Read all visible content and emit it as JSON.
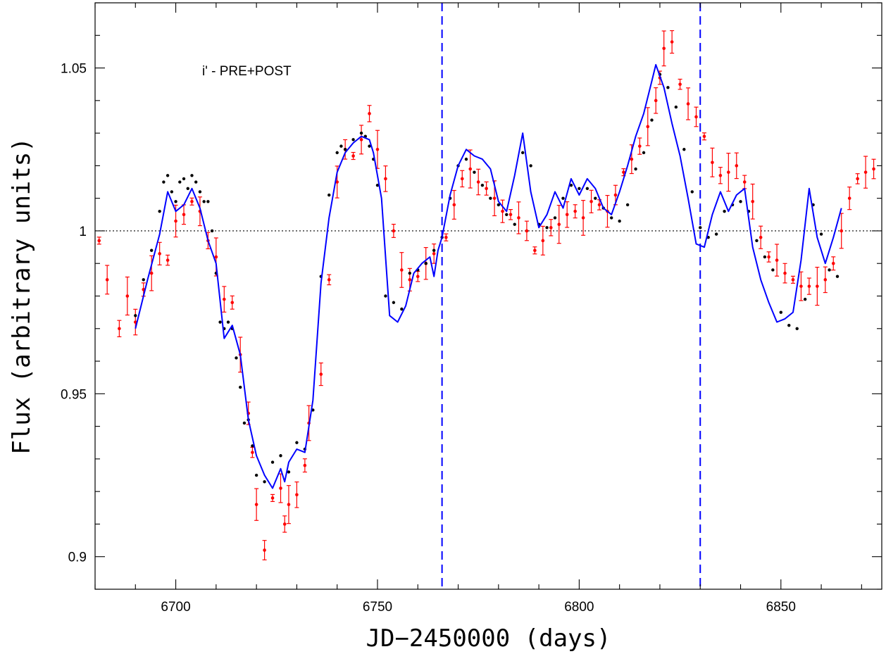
{
  "chart_data": {
    "type": "scatter",
    "title": "",
    "annotation": "i' - PRE+POST",
    "xlabel": "JD−2450000 (days)",
    "ylabel": "Flux (arbitrary units)",
    "xlim": [
      6680,
      6875
    ],
    "ylim": [
      0.89,
      1.07
    ],
    "x_ticks": [
      6700,
      6750,
      6800,
      6850
    ],
    "x_tick_labels": [
      "6700",
      "6750",
      "6800",
      "6850"
    ],
    "y_ticks": [
      0.9,
      0.95,
      1.0,
      1.05
    ],
    "y_tick_labels": [
      "0.9",
      "0.95",
      "1",
      "1.05"
    ],
    "reference_line_y": 1.0,
    "vertical_lines_x": [
      6766,
      6830
    ],
    "grid": false,
    "colors": {
      "model_line": "#0000ff",
      "observed_points": "#ff0000",
      "model_points": "#000000",
      "reference_line": "#000000",
      "vertical_lines": "#0000ff"
    },
    "series": [
      {
        "kind": "model_line",
        "x": [
          6690,
          6693,
          6696,
          6698,
          6700,
          6702,
          6704,
          6706,
          6708,
          6710,
          6712,
          6714,
          6716,
          6718,
          6720,
          6722,
          6724,
          6726,
          6727,
          6728,
          6730,
          6732,
          6734,
          6736,
          6738,
          6740,
          6742,
          6744,
          6746,
          6748,
          6749,
          6751,
          6753,
          6755,
          6757,
          6759,
          6761,
          6763,
          6764,
          6765,
          6766,
          6768,
          6770,
          6772,
          6774,
          6776,
          6778,
          6780,
          6782,
          6784,
          6786,
          6788,
          6790,
          6792,
          6794,
          6796,
          6798,
          6800,
          6802,
          6804,
          6806,
          6808,
          6810,
          6812,
          6814,
          6816,
          6818,
          6819,
          6821,
          6823,
          6825,
          6827,
          6829,
          6831,
          6833,
          6835,
          6837,
          6839,
          6841,
          6843,
          6845,
          6847,
          6849,
          6851,
          6853,
          6855,
          6857,
          6859,
          6861,
          6863,
          6865
        ],
        "y": [
          0.97,
          0.985,
          0.999,
          1.012,
          1.006,
          1.008,
          1.013,
          1.007,
          0.997,
          0.99,
          0.967,
          0.971,
          0.962,
          0.942,
          0.931,
          0.925,
          0.921,
          0.927,
          0.923,
          0.929,
          0.933,
          0.932,
          0.948,
          0.984,
          1.004,
          1.018,
          1.024,
          1.027,
          1.029,
          1.028,
          1.024,
          1.01,
          0.974,
          0.972,
          0.977,
          0.987,
          0.99,
          0.992,
          0.986,
          0.994,
          0.998,
          1.011,
          1.02,
          1.025,
          1.023,
          1.022,
          1.019,
          1.009,
          1.006,
          1.017,
          1.03,
          1.012,
          1.001,
          1.005,
          1.012,
          1.007,
          1.016,
          1.011,
          1.016,
          1.013,
          1.007,
          1.005,
          1.012,
          1.02,
          1.029,
          1.036,
          1.046,
          1.051,
          1.044,
          1.033,
          1.023,
          1.01,
          0.996,
          0.995,
          1.005,
          1.012,
          1.006,
          1.011,
          1.013,
          0.995,
          0.985,
          0.978,
          0.972,
          0.973,
          0.975,
          0.991,
          1.013,
          0.998,
          0.99,
          0.998,
          1.007
        ]
      },
      {
        "kind": "model_points",
        "x": [
          6690,
          6692,
          6694,
          6696,
          6697,
          6698,
          6699,
          6700,
          6701,
          6702,
          6703,
          6704,
          6705,
          6706,
          6707,
          6708,
          6709,
          6710,
          6711,
          6712,
          6713,
          6714,
          6715,
          6716,
          6717,
          6718,
          6719,
          6720,
          6722,
          6724,
          6726,
          6728,
          6730,
          6732,
          6734,
          6736,
          6738,
          6740,
          6741,
          6742,
          6744,
          6746,
          6747,
          6748,
          6749,
          6750,
          6752,
          6754,
          6756,
          6758,
          6760,
          6762,
          6764,
          6766,
          6768,
          6770,
          6772,
          6774,
          6776,
          6778,
          6780,
          6782,
          6784,
          6786,
          6788,
          6790,
          6792,
          6794,
          6796,
          6798,
          6800,
          6802,
          6804,
          6806,
          6808,
          6810,
          6812,
          6814,
          6816,
          6818,
          6820,
          6822,
          6824,
          6826,
          6828,
          6830,
          6832,
          6834,
          6836,
          6838,
          6840,
          6842,
          6844,
          6846,
          6848,
          6850,
          6852,
          6854,
          6856,
          6858,
          6860,
          6862,
          6864
        ],
        "y": [
          0.974,
          0.985,
          0.994,
          1.006,
          1.015,
          1.017,
          1.012,
          1.009,
          1.015,
          1.016,
          1.013,
          1.017,
          1.015,
          1.012,
          1.009,
          1.009,
          1.0,
          0.987,
          0.972,
          0.97,
          0.972,
          0.97,
          0.961,
          0.952,
          0.941,
          0.942,
          0.934,
          0.925,
          0.923,
          0.929,
          0.931,
          0.926,
          0.935,
          0.933,
          0.945,
          0.986,
          1.011,
          1.024,
          1.026,
          1.025,
          1.028,
          1.03,
          1.029,
          1.026,
          1.022,
          1.014,
          0.98,
          0.978,
          0.976,
          0.987,
          0.988,
          0.99,
          0.994,
          0.998,
          1.01,
          1.02,
          1.022,
          1.018,
          1.014,
          1.01,
          1.008,
          1.005,
          1.002,
          1.024,
          1.02,
          1.002,
          1.001,
          1.004,
          1.01,
          1.014,
          1.013,
          1.013,
          1.01,
          1.007,
          1.004,
          1.003,
          1.008,
          1.019,
          1.024,
          1.034,
          1.048,
          1.044,
          1.038,
          1.025,
          1.012,
          1.001,
          0.998,
          0.999,
          1.006,
          1.008,
          1.009,
          1.006,
          0.997,
          0.992,
          0.988,
          0.975,
          0.971,
          0.97,
          0.979,
          1.008,
          0.999,
          0.988,
          0.986
        ]
      },
      {
        "kind": "observed_points",
        "x": [
          6681,
          6683,
          6686,
          6688,
          6690,
          6692,
          6694,
          6696,
          6698,
          6700,
          6702,
          6704,
          6706,
          6708,
          6710,
          6712,
          6714,
          6716,
          6718,
          6719,
          6720,
          6722,
          6724,
          6726,
          6727,
          6728,
          6730,
          6732,
          6733,
          6736,
          6738,
          6740,
          6742,
          6744,
          6746,
          6748,
          6750,
          6752,
          6754,
          6756,
          6758,
          6760,
          6762,
          6764,
          6767,
          6769,
          6771,
          6773,
          6775,
          6777,
          6779,
          6781,
          6783,
          6785,
          6787,
          6789,
          6791,
          6793,
          6795,
          6797,
          6799,
          6801,
          6803,
          6805,
          6807,
          6809,
          6811,
          6813,
          6815,
          6817,
          6819,
          6820,
          6821,
          6823,
          6825,
          6827,
          6829,
          6831,
          6833,
          6835,
          6837,
          6839,
          6841,
          6843,
          6845,
          6847,
          6849,
          6851,
          6853,
          6855,
          6857,
          6859,
          6861,
          6863,
          6865,
          6867,
          6869,
          6871,
          6873
        ],
        "y": [
          0.997,
          0.985,
          0.97,
          0.98,
          0.972,
          0.982,
          0.987,
          0.993,
          0.991,
          1.003,
          1.005,
          1.009,
          1.006,
          0.997,
          0.992,
          0.979,
          0.978,
          0.962,
          0.944,
          0.932,
          0.916,
          0.902,
          0.918,
          0.921,
          0.91,
          0.916,
          0.919,
          0.928,
          0.941,
          0.956,
          0.985,
          1.015,
          1.025,
          1.023,
          1.028,
          1.036,
          1.025,
          1.016,
          1.0,
          0.988,
          0.985,
          0.986,
          0.99,
          0.993,
          0.998,
          1.008,
          1.016,
          1.019,
          1.015,
          1.013,
          1.01,
          1.006,
          1.005,
          1.004,
          1.0,
          0.994,
          0.997,
          1.001,
          1.002,
          1.005,
          1.006,
          1.004,
          1.009,
          1.008,
          1.006,
          1.011,
          1.018,
          1.022,
          1.026,
          1.032,
          1.04,
          1.047,
          1.056,
          1.058,
          1.045,
          1.039,
          1.035,
          1.029,
          1.021,
          1.017,
          1.018,
          1.02,
          1.015,
          1.009,
          0.998,
          0.992,
          0.991,
          0.987,
          0.985,
          0.983,
          0.983,
          0.983,
          0.985,
          0.99,
          1.0,
          1.01,
          1.016,
          1.018,
          1.019
        ]
      }
    ]
  }
}
